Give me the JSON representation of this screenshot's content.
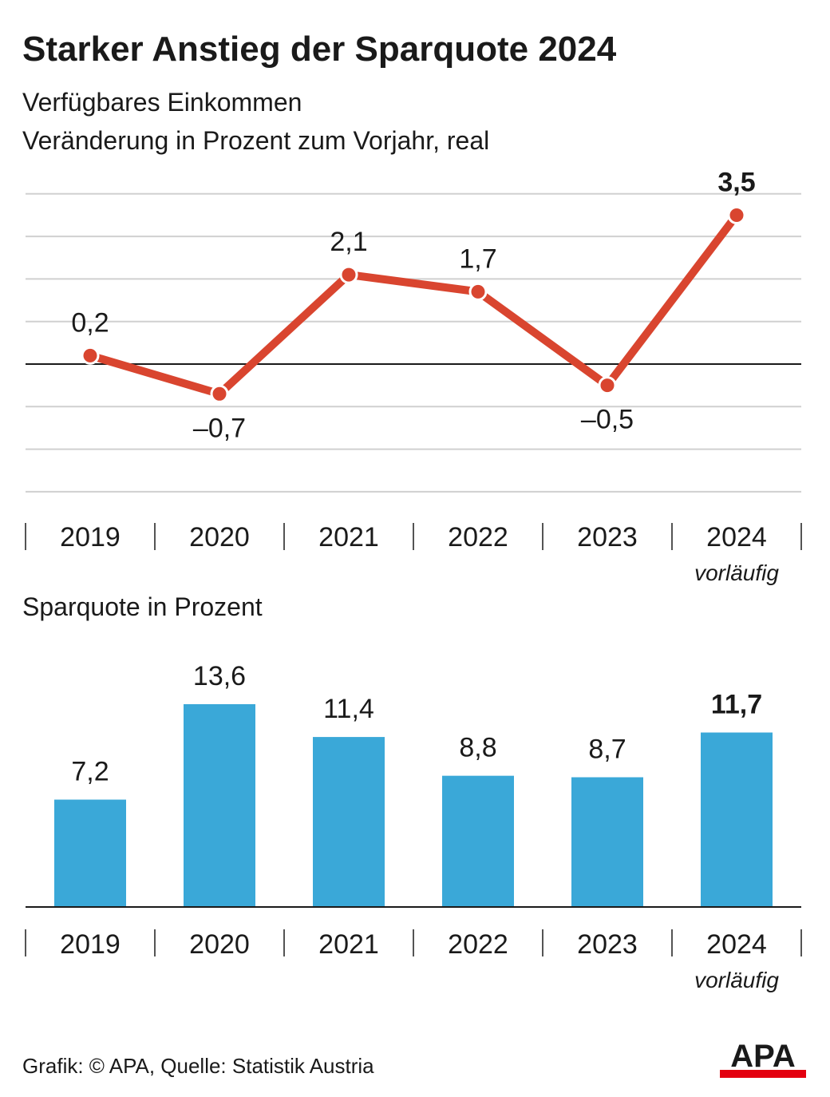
{
  "title": "Starker Anstieg der Sparquote 2024",
  "line_chart": {
    "subtitle_line1": "Verfügbares Einkommen",
    "subtitle_line2": "Veränderung in Prozent zum Vorjahr, real"
  },
  "bar_chart": {
    "subtitle": "Sparquote in Prozent"
  },
  "footer": {
    "credit": "Grafik: © APA, Quelle: Statistik Austria",
    "logo_text": "APA"
  },
  "colors": {
    "line": "#d9452f",
    "bar": "#3aa8d8",
    "grid": "#d0d0d0",
    "axis": "#1a1a1a",
    "logo_red": "#e3000f"
  },
  "chart_data": [
    {
      "type": "line",
      "categories": [
        "2019",
        "2020",
        "2021",
        "2022",
        "2023",
        "2024"
      ],
      "category_notes": [
        "",
        "",
        "",
        "",
        "",
        "vorläufig"
      ],
      "values": [
        0.2,
        -0.7,
        2.1,
        1.7,
        -0.5,
        3.5
      ],
      "value_labels": [
        "0,2",
        "–0,7",
        "2,1",
        "1,7",
        "–0,5",
        "3,5"
      ],
      "highlight_index": 5,
      "ylim": [
        -3,
        4
      ],
      "grid": true
    },
    {
      "type": "bar",
      "categories": [
        "2019",
        "2020",
        "2021",
        "2022",
        "2023",
        "2024"
      ],
      "category_notes": [
        "",
        "",
        "",
        "",
        "",
        "vorläufig"
      ],
      "values": [
        7.2,
        13.6,
        11.4,
        8.8,
        8.7,
        11.7
      ],
      "value_labels": [
        "7,2",
        "13,6",
        "11,4",
        "8,8",
        "8,7",
        "11,7"
      ],
      "highlight_index": 5,
      "ylim": [
        0,
        13.6
      ],
      "grid": false
    }
  ]
}
